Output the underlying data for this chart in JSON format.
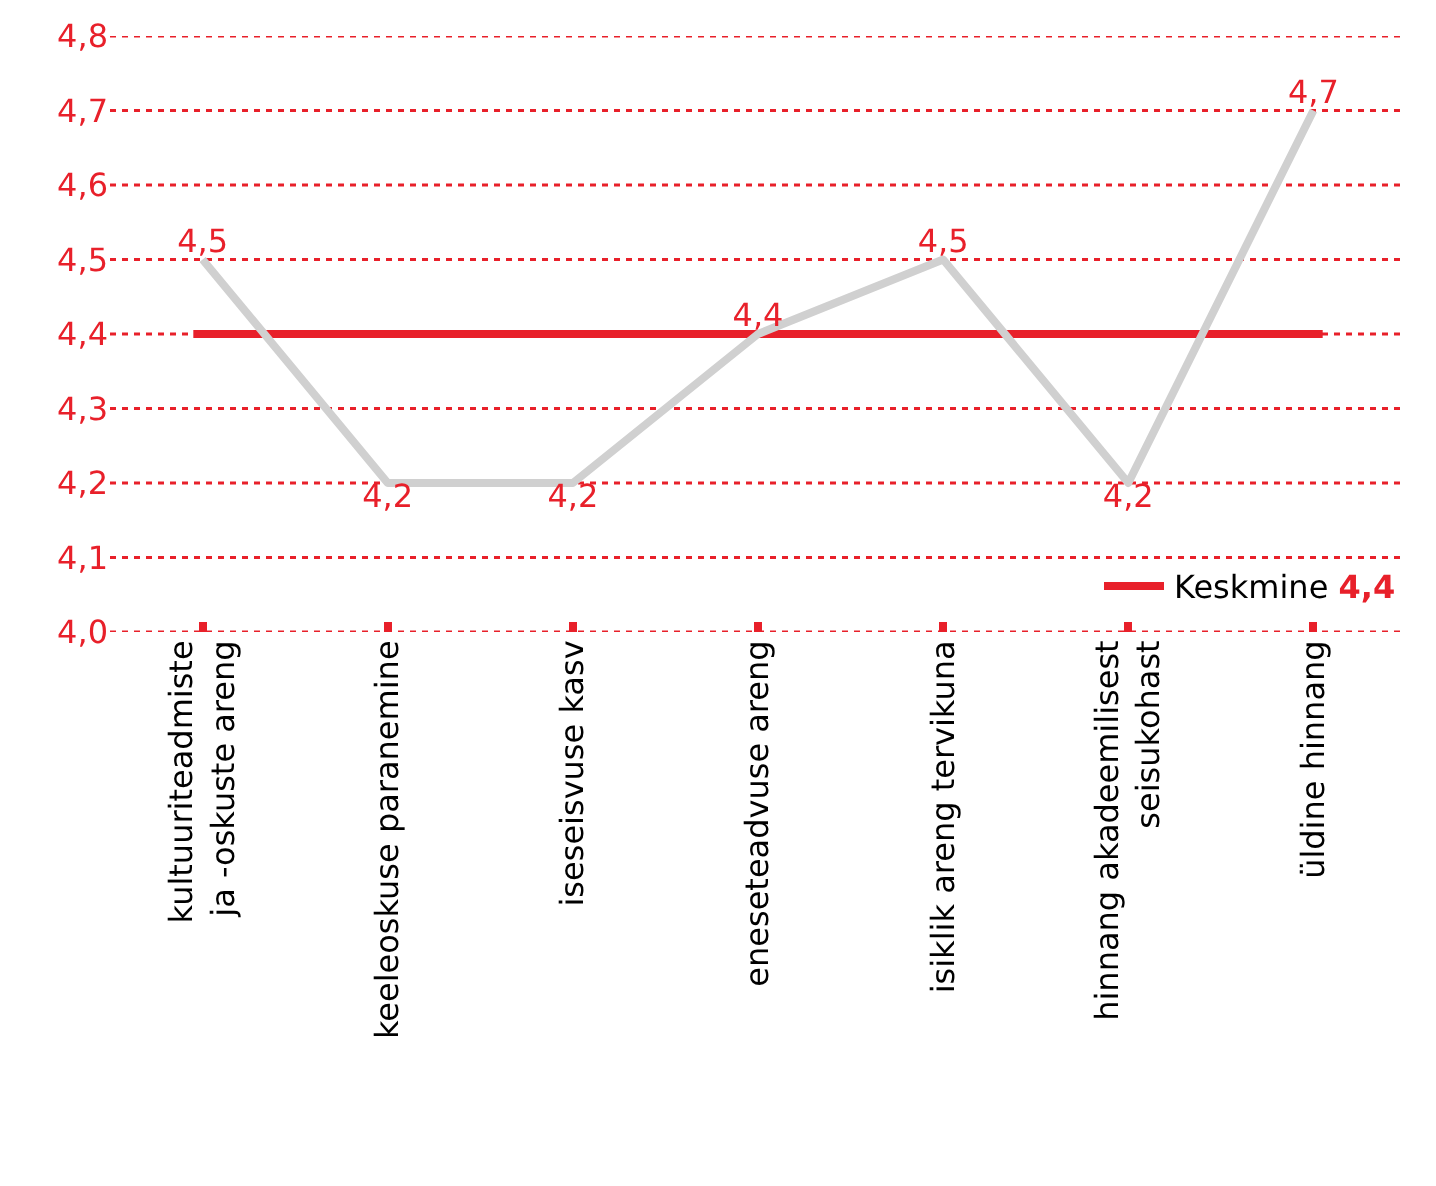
{
  "chart_data": {
    "type": "line",
    "categories": [
      "kultuuriteadmiste\nja -oskuste areng",
      "keeleoskuse paranemine",
      "iseseisvuse kasv",
      "eneseteadvuse areng",
      "isiklik areng tervikuna",
      "hinnang akadeemilisest\nseisukohast",
      "üldine hinnang"
    ],
    "series": [
      {
        "color": "#d0d0d0",
        "values": [
          4.5,
          4.2,
          4.2,
          4.4,
          4.5,
          4.2,
          4.7
        ],
        "value_labels": [
          "4,5",
          "4,2",
          "4,2",
          "4,4",
          "4,5",
          "4,2",
          "4,7"
        ]
      }
    ],
    "ylim": [
      4.0,
      4.8
    ],
    "yticks": [
      {
        "value": 4.0,
        "label": "4,0"
      },
      {
        "value": 4.1,
        "label": "4,1"
      },
      {
        "value": 4.2,
        "label": "4,2"
      },
      {
        "value": 4.3,
        "label": "4,3"
      },
      {
        "value": 4.4,
        "label": "4,4"
      },
      {
        "value": 4.5,
        "label": "4,5"
      },
      {
        "value": 4.6,
        "label": "4,6"
      },
      {
        "value": 4.7,
        "label": "4,7"
      },
      {
        "value": 4.8,
        "label": "4,8"
      }
    ],
    "ref_lines": [
      {
        "axis": "y",
        "value": 4.4,
        "label": "Keskmine 4,4",
        "color": "#e8202a"
      }
    ],
    "grid": "y",
    "legend": "bottom right",
    "marker": "none",
    "line_style": "solid"
  }
}
